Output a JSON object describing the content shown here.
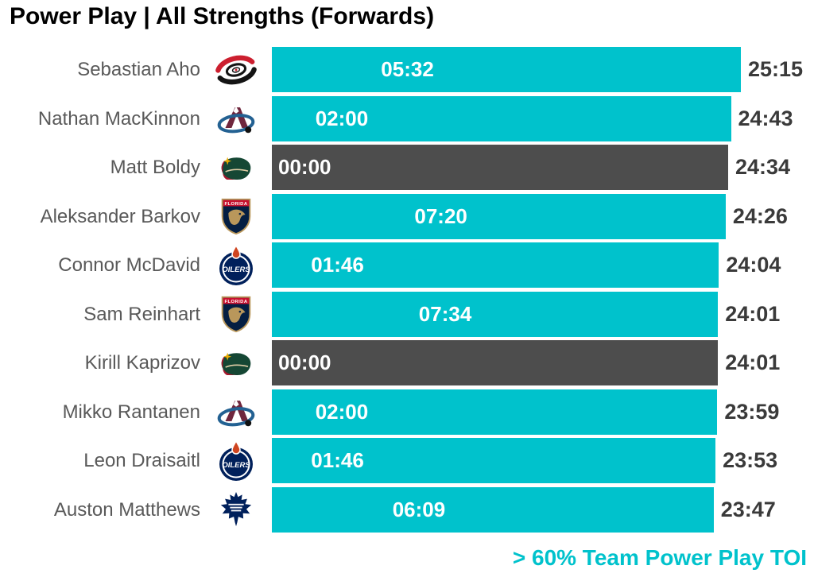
{
  "title": "Power Play | All Strengths (Forwards)",
  "footnote": "> 60% Team Power Play TOI",
  "colors": {
    "accent_teal": "#00C2CC",
    "bar_dark_gray": "#4D4D4D",
    "name_text": "#595959",
    "value_text": "#3A3A3A",
    "inside_label_text": "#FFFFFF",
    "title_text": "#000000"
  },
  "chart_data": {
    "type": "bar",
    "orientation": "horizontal",
    "title": "Power Play | All Strengths (Forwards)",
    "note": "> 60% Team Power Play TOI",
    "value_format": "mm:ss",
    "axis": {
      "unit": "seconds",
      "min": 0,
      "max": 1515,
      "gridlines": false,
      "axis_labels_shown": false
    },
    "legend": {
      "teal_bar_meaning": "> 60% Team Power Play TOI",
      "dark_gray_bar_meaning": "00:00 power play time"
    },
    "series": [
      {
        "name": "Power Play TOI",
        "shown_as": "inside-bar label positioned at value"
      },
      {
        "name": "Total TOI",
        "shown_as": "bar length with end label"
      }
    ],
    "rows": [
      {
        "player": "Sebastian Aho",
        "team": "carolina-hurricanes",
        "team_label": "Carolina Hurricanes",
        "pp_toi": "05:32",
        "pp_seconds": 332,
        "total_toi": "25:15",
        "total_seconds": 1515,
        "bar_style": "teal"
      },
      {
        "player": "Nathan MacKinnon",
        "team": "colorado-avalanche",
        "team_label": "Colorado Avalanche",
        "pp_toi": "02:00",
        "pp_seconds": 120,
        "total_toi": "24:43",
        "total_seconds": 1483,
        "bar_style": "teal"
      },
      {
        "player": "Matt Boldy",
        "team": "minnesota-wild",
        "team_label": "Minnesota Wild",
        "pp_toi": "00:00",
        "pp_seconds": 0,
        "total_toi": "24:34",
        "total_seconds": 1474,
        "bar_style": "dark-gray"
      },
      {
        "player": "Aleksander Barkov",
        "team": "florida-panthers",
        "team_label": "Florida Panthers",
        "pp_toi": "07:20",
        "pp_seconds": 440,
        "total_toi": "24:26",
        "total_seconds": 1466,
        "bar_style": "teal"
      },
      {
        "player": "Connor McDavid",
        "team": "edmonton-oilers",
        "team_label": "Edmonton Oilers",
        "pp_toi": "01:46",
        "pp_seconds": 106,
        "total_toi": "24:04",
        "total_seconds": 1444,
        "bar_style": "teal"
      },
      {
        "player": "Sam Reinhart",
        "team": "florida-panthers",
        "team_label": "Florida Panthers",
        "pp_toi": "07:34",
        "pp_seconds": 454,
        "total_toi": "24:01",
        "total_seconds": 1441,
        "bar_style": "teal"
      },
      {
        "player": "Kirill Kaprizov",
        "team": "minnesota-wild",
        "team_label": "Minnesota Wild",
        "pp_toi": "00:00",
        "pp_seconds": 0,
        "total_toi": "24:01",
        "total_seconds": 1441,
        "bar_style": "dark-gray"
      },
      {
        "player": "Mikko Rantanen",
        "team": "colorado-avalanche",
        "team_label": "Colorado Avalanche",
        "pp_toi": "02:00",
        "pp_seconds": 120,
        "total_toi": "23:59",
        "total_seconds": 1439,
        "bar_style": "teal"
      },
      {
        "player": "Leon Draisaitl",
        "team": "edmonton-oilers",
        "team_label": "Edmonton Oilers",
        "pp_toi": "01:46",
        "pp_seconds": 106,
        "total_toi": "23:53",
        "total_seconds": 1433,
        "bar_style": "teal"
      },
      {
        "player": "Auston Matthews",
        "team": "toronto-maple-leafs",
        "team_label": "Toronto Maple Leafs",
        "pp_toi": "06:09",
        "pp_seconds": 369,
        "total_toi": "23:47",
        "total_seconds": 1427,
        "bar_style": "teal"
      }
    ]
  }
}
